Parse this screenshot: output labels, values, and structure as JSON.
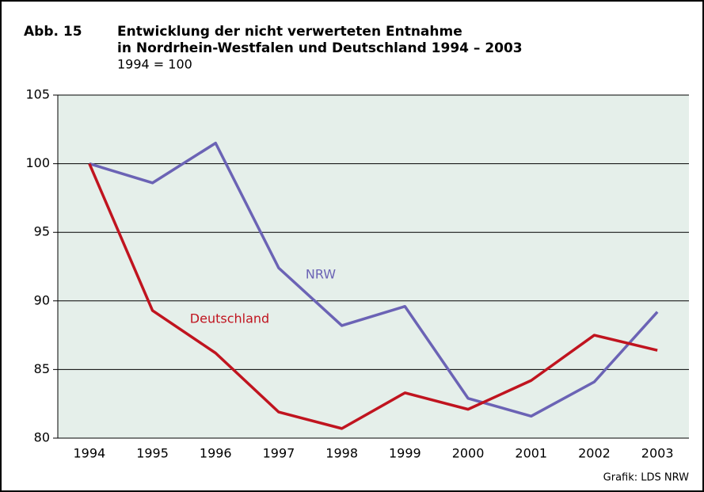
{
  "chart_data": {
    "type": "line",
    "figure_label": "Abb. 15",
    "title": [
      "Entwicklung der nicht verwerteten Entnahme",
      "in Nordrhein-Westfalen und Deutschland 1994 – 2003"
    ],
    "subtitle": "1994 = 100",
    "source": "Grafik: LDS NRW",
    "categories": [
      "1994",
      "1995",
      "1996",
      "1997",
      "1998",
      "1999",
      "2000",
      "2001",
      "2002",
      "2003"
    ],
    "series": [
      {
        "name": "NRW",
        "color": "#6b63b5",
        "values": [
          100,
          98.6,
          101.5,
          92.4,
          88.2,
          89.6,
          82.9,
          81.6,
          84.1,
          89.2
        ]
      },
      {
        "name": "Deutschland",
        "color": "#c0141f",
        "values": [
          100,
          89.3,
          86.2,
          81.9,
          80.7,
          83.3,
          82.1,
          84.2,
          87.5,
          86.4
        ]
      }
    ],
    "ylim": [
      80,
      105
    ],
    "yticks": [
      80,
      85,
      90,
      95,
      100,
      105
    ],
    "grid": true
  }
}
